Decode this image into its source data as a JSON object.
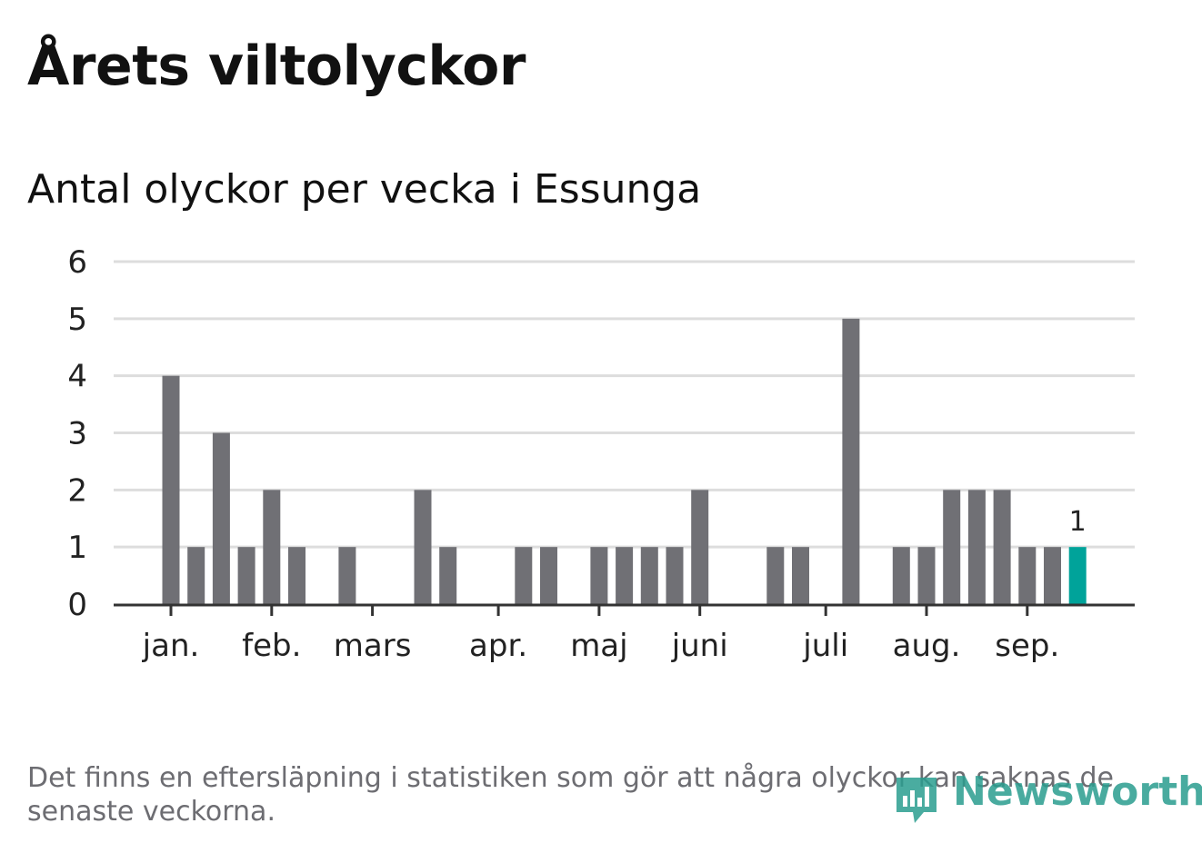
{
  "title": "Årets viltolyckor",
  "subtitle": "Antal olyckor per vecka i Essunga",
  "footnote": "Det finns en eftersläpning i statistiken som gör att några olyckor kan saknas de senaste veckorna.",
  "brand": {
    "name": "Newsworthy",
    "color": "#2a9d8f"
  },
  "chart_data": {
    "type": "bar",
    "x_unit": "week",
    "month_labels": [
      {
        "label": "jan.",
        "week": 1
      },
      {
        "label": "feb.",
        "week": 5
      },
      {
        "label": "mars",
        "week": 9
      },
      {
        "label": "apr.",
        "week": 14
      },
      {
        "label": "maj",
        "week": 18
      },
      {
        "label": "juni",
        "week": 22
      },
      {
        "label": "juli",
        "week": 27
      },
      {
        "label": "aug.",
        "week": 31
      },
      {
        "label": "sep.",
        "week": 35
      }
    ],
    "weeks": [
      1,
      2,
      3,
      4,
      5,
      6,
      7,
      8,
      9,
      10,
      11,
      12,
      13,
      14,
      15,
      16,
      17,
      18,
      19,
      20,
      21,
      22,
      23,
      24,
      25,
      26,
      27,
      28,
      29,
      30,
      31,
      32,
      33,
      34,
      35,
      36,
      37,
      38
    ],
    "values": [
      4,
      1,
      3,
      1,
      2,
      1,
      0,
      1,
      0,
      0,
      2,
      1,
      0,
      0,
      1,
      1,
      0,
      1,
      1,
      1,
      1,
      2,
      0,
      0,
      1,
      1,
      0,
      5,
      0,
      1,
      1,
      2,
      2,
      2,
      1,
      1,
      1,
      null
    ],
    "highlight_index": 36,
    "highlight_label": "1",
    "ylim": [
      0,
      6
    ],
    "yticks": [
      0,
      1,
      2,
      3,
      4,
      5,
      6
    ],
    "grid": true,
    "colors": {
      "bar": "#707075",
      "highlight": "#00a39a",
      "grid": "#dddddd",
      "axis": "#333333"
    }
  }
}
